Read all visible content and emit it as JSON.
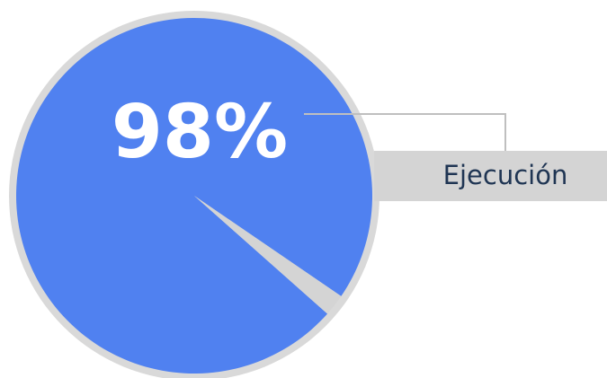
{
  "chart_data": {
    "type": "pie",
    "title": "",
    "slices": [
      {
        "label": "",
        "value": 98,
        "color": "#5081F0"
      },
      {
        "label": "",
        "value": 2,
        "color": "#D4D4D4"
      }
    ],
    "center_label": "98%",
    "callout_label": "Ejecución"
  },
  "colors": {
    "primary": "#5081F0",
    "remainder": "#D4D4D4",
    "ring": "#D9D9D9",
    "callout_box": "#D4D4D4",
    "callout_line": "#BFBFBF",
    "text_primary": "#FFFFFF",
    "text_label": "#1F3553"
  }
}
